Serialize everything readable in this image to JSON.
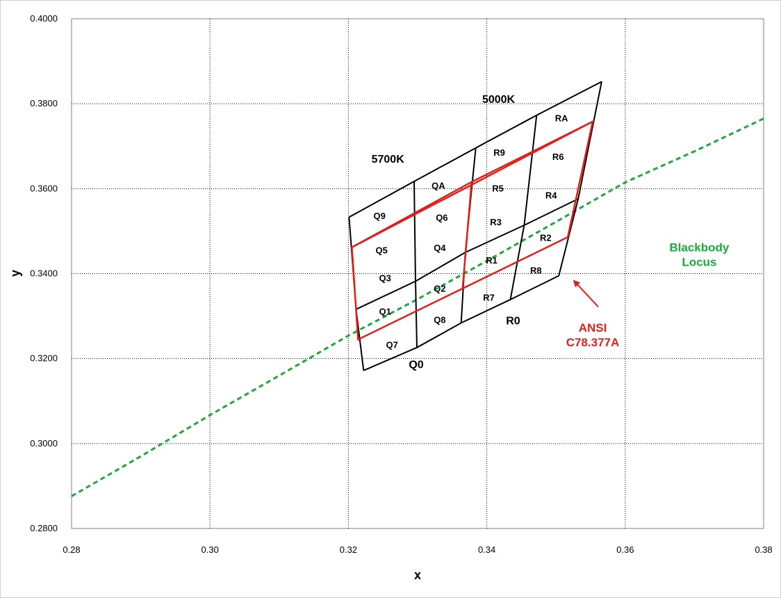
{
  "chart_data": {
    "type": "scatter",
    "title": "",
    "xlabel": "x",
    "ylabel": "y",
    "xlim": [
      0.28,
      0.38
    ],
    "ylim": [
      0.28,
      0.4
    ],
    "x_ticks": [
      "0.28",
      "0.30",
      "0.32",
      "0.34",
      "0.36",
      "0.38"
    ],
    "y_ticks": [
      "0.2800",
      "0.3000",
      "0.3200",
      "0.3400",
      "0.3600",
      "0.3800",
      "0.4000"
    ],
    "grid": {
      "vertical": true,
      "horizontal": true,
      "style": "dotted"
    },
    "colors": {
      "grid": "#000000",
      "bins": "#000000",
      "ansi": "#e0201b",
      "locus": "#1aaa3c",
      "arrow": "#e0201b"
    },
    "blackbody_locus": {
      "name": "Blackbody Locus",
      "x": [
        0.28,
        0.29,
        0.3,
        0.31,
        0.32,
        0.33,
        0.34,
        0.35,
        0.36,
        0.37,
        0.38
      ],
      "y": [
        0.2876,
        0.297,
        0.3067,
        0.316,
        0.3254,
        0.334,
        0.343,
        0.3522,
        0.3615,
        0.3688,
        0.3765
      ]
    },
    "bin_grid_points": [
      [
        [
          0.3222,
          0.3172
        ],
        [
          0.3299,
          0.3226
        ],
        [
          0.3363,
          0.3284
        ],
        [
          0.3434,
          0.3339
        ],
        [
          0.3504,
          0.3395
        ]
      ],
      [
        [
          0.3211,
          0.3316
        ],
        [
          0.3297,
          0.3382
        ],
        [
          0.3369,
          0.345
        ],
        [
          0.3454,
          0.3514
        ],
        [
          0.3532,
          0.3576
        ]
      ],
      [
        [
          0.3201,
          0.3533
        ],
        [
          0.3295,
          0.3617
        ],
        [
          0.3384,
          0.3696
        ],
        [
          0.3472,
          0.3773
        ],
        [
          0.3566,
          0.3852
        ]
      ]
    ],
    "ansi_quadrangle": {
      "name": "ANSI C78.377A",
      "points": [
        [
          0.3214,
          0.3245
        ],
        [
          0.3205,
          0.3462
        ],
        [
          0.3378,
          0.3616
        ],
        [
          0.3553,
          0.3758
        ],
        [
          0.3517,
          0.3486
        ],
        [
          0.3365,
          0.3365
        ]
      ]
    },
    "cell_labels": [
      {
        "text": "Q7",
        "x": 0.3263,
        "y": 0.3233
      },
      {
        "text": "Q1",
        "x": 0.3253,
        "y": 0.3312
      },
      {
        "text": "Q3",
        "x": 0.3253,
        "y": 0.339
      },
      {
        "text": "Q5",
        "x": 0.3248,
        "y": 0.3456
      },
      {
        "text": "Q9",
        "x": 0.3245,
        "y": 0.3537
      },
      {
        "text": "Q8",
        "x": 0.3332,
        "y": 0.3292
      },
      {
        "text": "Q2",
        "x": 0.3332,
        "y": 0.3366
      },
      {
        "text": "Q4",
        "x": 0.3332,
        "y": 0.3461
      },
      {
        "text": "Q6",
        "x": 0.3335,
        "y": 0.3533
      },
      {
        "text": "QA",
        "x": 0.333,
        "y": 0.3608
      },
      {
        "text": "R7",
        "x": 0.3403,
        "y": 0.3344
      },
      {
        "text": "R1",
        "x": 0.3407,
        "y": 0.3432
      },
      {
        "text": "R3",
        "x": 0.3413,
        "y": 0.3522
      },
      {
        "text": "R5",
        "x": 0.3416,
        "y": 0.3601
      },
      {
        "text": "R9",
        "x": 0.3418,
        "y": 0.3686
      },
      {
        "text": "R8",
        "x": 0.3471,
        "y": 0.3408
      },
      {
        "text": "R2",
        "x": 0.3485,
        "y": 0.3485
      },
      {
        "text": "R4",
        "x": 0.3493,
        "y": 0.3585
      },
      {
        "text": "R6",
        "x": 0.3503,
        "y": 0.3676
      },
      {
        "text": "RA",
        "x": 0.3508,
        "y": 0.3767
      }
    ],
    "group_labels": [
      {
        "text": "Q0",
        "x": 0.3298,
        "y": 0.3187
      },
      {
        "text": "R0",
        "x": 0.3438,
        "y": 0.329
      },
      {
        "text": "5700K",
        "x": 0.3257,
        "y": 0.3671
      },
      {
        "text": "5000K",
        "x": 0.3417,
        "y": 0.3812
      }
    ],
    "annotations": [
      {
        "text_lines": [
          "Blackbody",
          "Locus"
        ],
        "x": 0.3707,
        "y": 0.3452,
        "color": "#1aaa3c"
      },
      {
        "text_lines": [
          "ANSI",
          "C78.377A"
        ],
        "x": 0.3553,
        "y": 0.3263,
        "color": "#e0201b"
      }
    ],
    "arrow": {
      "from": [
        0.3561,
        0.3322
      ],
      "to": [
        0.3526,
        0.3383
      ]
    }
  }
}
